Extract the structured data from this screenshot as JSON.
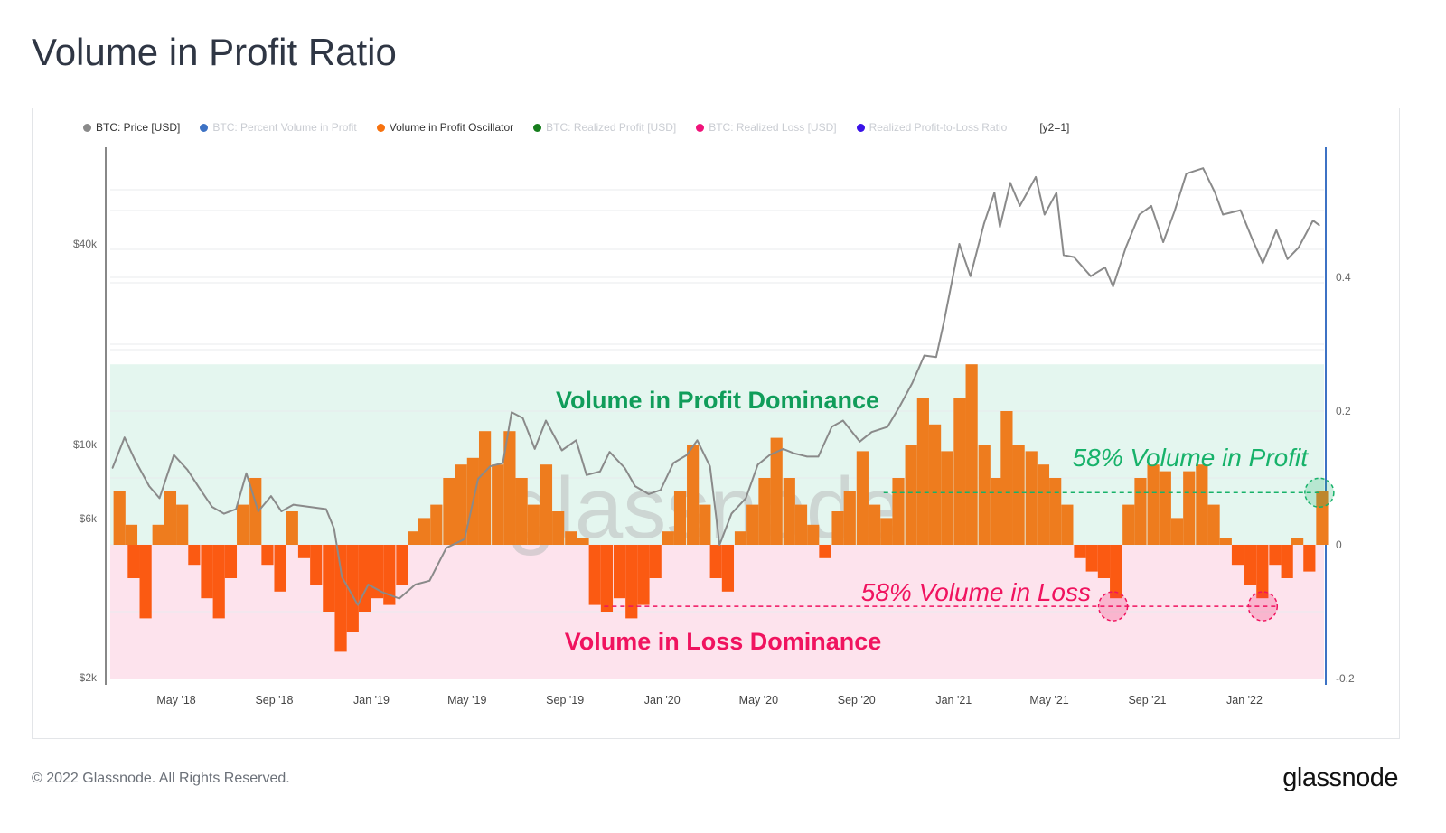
{
  "title": "Volume in Profit Ratio",
  "legend": [
    {
      "label": "BTC: Price [USD]",
      "color": "#8a8a8a",
      "active": true
    },
    {
      "label": "BTC: Percent Volume in Profit",
      "color": "#3d72c4",
      "active": false
    },
    {
      "label": "Volume in Profit Oscillator",
      "color": "#f7720f",
      "active": true
    },
    {
      "label": "BTC: Realized Profit [USD]",
      "color": "#167d1d",
      "active": false
    },
    {
      "label": "BTC: Realized Loss [USD]",
      "color": "#f0137a",
      "active": false
    },
    {
      "label": "Realized Profit-to-Loss Ratio",
      "color": "#3a12e8",
      "active": false
    },
    {
      "label": "[y2=1]",
      "color": "",
      "active": true
    }
  ],
  "footer": "© 2022 Glassnode. All Rights Reserved.",
  "logo": "glassnode",
  "watermark": "glassnode",
  "chart_data": {
    "type": "line+bar",
    "x_ticks": [
      {
        "label": "May '18",
        "date": "2018-05-01"
      },
      {
        "label": "Sep '18",
        "date": "2018-09-01"
      },
      {
        "label": "Jan '19",
        "date": "2019-01-01"
      },
      {
        "label": "May '19",
        "date": "2019-05-01"
      },
      {
        "label": "Sep '19",
        "date": "2019-09-01"
      },
      {
        "label": "Jan '20",
        "date": "2020-01-01"
      },
      {
        "label": "May '20",
        "date": "2020-05-01"
      },
      {
        "label": "Sep '20",
        "date": "2020-09-01"
      },
      {
        "label": "Jan '21",
        "date": "2021-01-01"
      },
      {
        "label": "May '21",
        "date": "2021-05-01"
      },
      {
        "label": "Sep '21",
        "date": "2021-09-01"
      },
      {
        "label": "Jan '22",
        "date": "2022-01-01"
      }
    ],
    "y_left": {
      "scale": "log",
      "ticks": [
        {
          "label": "$40k",
          "value": 40000
        },
        {
          "label": "$10k",
          "value": 10000
        },
        {
          "label": "$6k",
          "value": 6000
        },
        {
          "label": "$2k",
          "value": 2000
        }
      ]
    },
    "y_right": {
      "scale": "linear",
      "ticks": [
        {
          "label": "0.4",
          "value": 0.4
        },
        {
          "label": "0.2",
          "value": 0.2
        },
        {
          "label": "0",
          "value": 0
        },
        {
          "label": "-0.2",
          "value": -0.2
        }
      ],
      "range": [
        -0.2,
        0.6
      ]
    },
    "grid": true,
    "price": {
      "name": "BTC: Price [USD]",
      "color": "#8a8a8a",
      "points": [
        [
          "2018-02-10",
          8500
        ],
        [
          "2018-02-25",
          10500
        ],
        [
          "2018-03-10",
          9000
        ],
        [
          "2018-03-28",
          7500
        ],
        [
          "2018-04-10",
          6900
        ],
        [
          "2018-04-28",
          9300
        ],
        [
          "2018-05-15",
          8400
        ],
        [
          "2018-05-30",
          7400
        ],
        [
          "2018-06-15",
          6500
        ],
        [
          "2018-06-30",
          6200
        ],
        [
          "2018-07-15",
          6400
        ],
        [
          "2018-07-28",
          8200
        ],
        [
          "2018-08-12",
          6300
        ],
        [
          "2018-08-28",
          7000
        ],
        [
          "2018-09-10",
          6300
        ],
        [
          "2018-09-25",
          6600
        ],
        [
          "2018-10-15",
          6500
        ],
        [
          "2018-11-05",
          6400
        ],
        [
          "2018-11-15",
          5600
        ],
        [
          "2018-11-25",
          4000
        ],
        [
          "2018-12-15",
          3300
        ],
        [
          "2018-12-28",
          3800
        ],
        [
          "2019-01-15",
          3600
        ],
        [
          "2019-02-05",
          3450
        ],
        [
          "2019-02-25",
          3800
        ],
        [
          "2019-03-15",
          3900
        ],
        [
          "2019-04-05",
          4900
        ],
        [
          "2019-04-28",
          5200
        ],
        [
          "2019-05-15",
          7900
        ],
        [
          "2019-05-30",
          8600
        ],
        [
          "2019-06-15",
          8800
        ],
        [
          "2019-06-26",
          12500
        ],
        [
          "2019-07-10",
          12000
        ],
        [
          "2019-07-25",
          9700
        ],
        [
          "2019-08-08",
          11800
        ],
        [
          "2019-08-28",
          9600
        ],
        [
          "2019-09-15",
          10300
        ],
        [
          "2019-09-28",
          8100
        ],
        [
          "2019-10-15",
          8300
        ],
        [
          "2019-10-27",
          9500
        ],
        [
          "2019-11-15",
          8500
        ],
        [
          "2019-11-28",
          7500
        ],
        [
          "2019-12-15",
          7100
        ],
        [
          "2019-12-30",
          7300
        ],
        [
          "2020-01-15",
          8800
        ],
        [
          "2020-02-01",
          9300
        ],
        [
          "2020-02-14",
          10300
        ],
        [
          "2020-03-01",
          8600
        ],
        [
          "2020-03-13",
          5000
        ],
        [
          "2020-03-28",
          6200
        ],
        [
          "2020-04-15",
          6900
        ],
        [
          "2020-04-30",
          8700
        ],
        [
          "2020-05-15",
          9300
        ],
        [
          "2020-06-01",
          9700
        ],
        [
          "2020-06-15",
          9400
        ],
        [
          "2020-07-01",
          9200
        ],
        [
          "2020-07-15",
          9200
        ],
        [
          "2020-08-01",
          11300
        ],
        [
          "2020-08-15",
          11800
        ],
        [
          "2020-09-05",
          10200
        ],
        [
          "2020-09-20",
          10900
        ],
        [
          "2020-10-10",
          11300
        ],
        [
          "2020-10-25",
          13000
        ],
        [
          "2020-11-10",
          15300
        ],
        [
          "2020-11-25",
          18500
        ],
        [
          "2020-12-10",
          18300
        ],
        [
          "2020-12-20",
          23500
        ],
        [
          "2021-01-08",
          40000
        ],
        [
          "2021-01-22",
          32000
        ],
        [
          "2021-02-08",
          46000
        ],
        [
          "2021-02-21",
          57000
        ],
        [
          "2021-02-28",
          45000
        ],
        [
          "2021-03-13",
          61000
        ],
        [
          "2021-03-25",
          52000
        ],
        [
          "2021-04-14",
          63500
        ],
        [
          "2021-04-25",
          49000
        ],
        [
          "2021-05-10",
          57000
        ],
        [
          "2021-05-19",
          37000
        ],
        [
          "2021-06-01",
          36500
        ],
        [
          "2021-06-22",
          32000
        ],
        [
          "2021-07-10",
          34000
        ],
        [
          "2021-07-20",
          29800
        ],
        [
          "2021-08-05",
          39000
        ],
        [
          "2021-08-22",
          49000
        ],
        [
          "2021-09-06",
          52000
        ],
        [
          "2021-09-21",
          40500
        ],
        [
          "2021-10-05",
          50000
        ],
        [
          "2021-10-20",
          65000
        ],
        [
          "2021-11-10",
          67500
        ],
        [
          "2021-11-25",
          57000
        ],
        [
          "2021-12-05",
          49000
        ],
        [
          "2021-12-27",
          50500
        ],
        [
          "2022-01-10",
          41800
        ],
        [
          "2022-01-24",
          35000
        ],
        [
          "2022-02-10",
          44000
        ],
        [
          "2022-02-24",
          36000
        ],
        [
          "2022-03-10",
          39000
        ],
        [
          "2022-03-28",
          47000
        ],
        [
          "2022-04-05",
          45500
        ]
      ]
    },
    "oscillator": {
      "name": "Volume in Profit Oscillator",
      "color": "#f7720f",
      "halfmonths": [
        [
          "2018-02",
          [
            0.08,
            0.03
          ]
        ],
        [
          "2018-03",
          [
            -0.05,
            -0.11
          ]
        ],
        [
          "2018-04",
          [
            0.03,
            0.08
          ]
        ],
        [
          "2018-05",
          [
            0.06,
            -0.03
          ]
        ],
        [
          "2018-06",
          [
            -0.08,
            -0.11
          ]
        ],
        [
          "2018-07",
          [
            -0.05,
            0.06
          ]
        ],
        [
          "2018-08",
          [
            0.1,
            -0.03
          ]
        ],
        [
          "2018-09",
          [
            -0.07,
            0.05
          ]
        ],
        [
          "2018-10",
          [
            -0.02,
            -0.06
          ]
        ],
        [
          "2018-11",
          [
            -0.1,
            -0.16
          ]
        ],
        [
          "2018-12",
          [
            -0.13,
            -0.1
          ]
        ],
        [
          "2019-01",
          [
            -0.08,
            -0.09
          ]
        ],
        [
          "2019-02",
          [
            -0.06,
            0.02
          ]
        ],
        [
          "2019-03",
          [
            0.04,
            0.06
          ]
        ],
        [
          "2019-04",
          [
            0.1,
            0.12
          ]
        ],
        [
          "2019-05",
          [
            0.13,
            0.17
          ]
        ],
        [
          "2019-06",
          [
            0.12,
            0.17
          ]
        ],
        [
          "2019-07",
          [
            0.1,
            0.06
          ]
        ],
        [
          "2019-08",
          [
            0.12,
            0.05
          ]
        ],
        [
          "2019-09",
          [
            0.02,
            0.01
          ]
        ],
        [
          "2019-10",
          [
            -0.09,
            -0.1
          ]
        ],
        [
          "2019-11",
          [
            -0.08,
            -0.11
          ]
        ],
        [
          "2019-12",
          [
            -0.09,
            -0.05
          ]
        ],
        [
          "2020-01",
          [
            0.02,
            0.08
          ]
        ],
        [
          "2020-02",
          [
            0.15,
            0.06
          ]
        ],
        [
          "2020-03",
          [
            -0.05,
            -0.07
          ]
        ],
        [
          "2020-04",
          [
            0.02,
            0.06
          ]
        ],
        [
          "2020-05",
          [
            0.1,
            0.16
          ]
        ],
        [
          "2020-06",
          [
            0.1,
            0.06
          ]
        ],
        [
          "2020-07",
          [
            0.03,
            -0.02
          ]
        ],
        [
          "2020-08",
          [
            0.05,
            0.08
          ]
        ],
        [
          "2020-09",
          [
            0.14,
            0.06
          ]
        ],
        [
          "2020-10",
          [
            0.04,
            0.1
          ]
        ],
        [
          "2020-11",
          [
            0.15,
            0.22
          ]
        ],
        [
          "2020-12",
          [
            0.18,
            0.14
          ]
        ],
        [
          "2021-01",
          [
            0.22,
            0.27
          ]
        ],
        [
          "2021-02",
          [
            0.15,
            0.1
          ]
        ],
        [
          "2021-03",
          [
            0.2,
            0.15
          ]
        ],
        [
          "2021-04",
          [
            0.14,
            0.12
          ]
        ],
        [
          "2021-05",
          [
            0.1,
            0.06
          ]
        ],
        [
          "2021-06",
          [
            -0.02,
            -0.04
          ]
        ],
        [
          "2021-07",
          [
            -0.05,
            -0.08
          ]
        ],
        [
          "2021-08",
          [
            0.06,
            0.1
          ]
        ],
        [
          "2021-09",
          [
            0.12,
            0.11
          ]
        ],
        [
          "2021-10",
          [
            0.04,
            0.11
          ]
        ],
        [
          "2021-11",
          [
            0.12,
            0.06
          ]
        ],
        [
          "2021-12",
          [
            0.01,
            -0.03
          ]
        ],
        [
          "2022-01",
          [
            -0.06,
            -0.08
          ]
        ],
        [
          "2022-02",
          [
            -0.03,
            -0.05
          ]
        ],
        [
          "2022-03",
          [
            0.01,
            -0.04
          ]
        ],
        [
          "2022-04",
          [
            0.08
          ]
        ]
      ]
    },
    "zones": [
      {
        "label": "Volume in Profit Dominance",
        "from": 0,
        "to": 0.27,
        "color": "#e4f6ef",
        "text_color": "#109d5a"
      },
      {
        "label": "Volume in Loss Dominance",
        "from": -0.2,
        "to": 0,
        "color": "#fde3ed",
        "text_color": "#f0135f"
      }
    ],
    "annotations": [
      {
        "label": "58% Volume in Profit",
        "value": 0.078,
        "from": "2020-10-05",
        "to": "2022-04-05",
        "color": "#17b26a",
        "markers": [
          "2022-04-05"
        ]
      },
      {
        "label": "58% Volume in Loss",
        "value": -0.092,
        "from": "2019-10-20",
        "to": "2022-02-10",
        "color": "#f0135f",
        "markers": [
          "2021-07-20",
          "2022-01-24"
        ]
      }
    ]
  }
}
